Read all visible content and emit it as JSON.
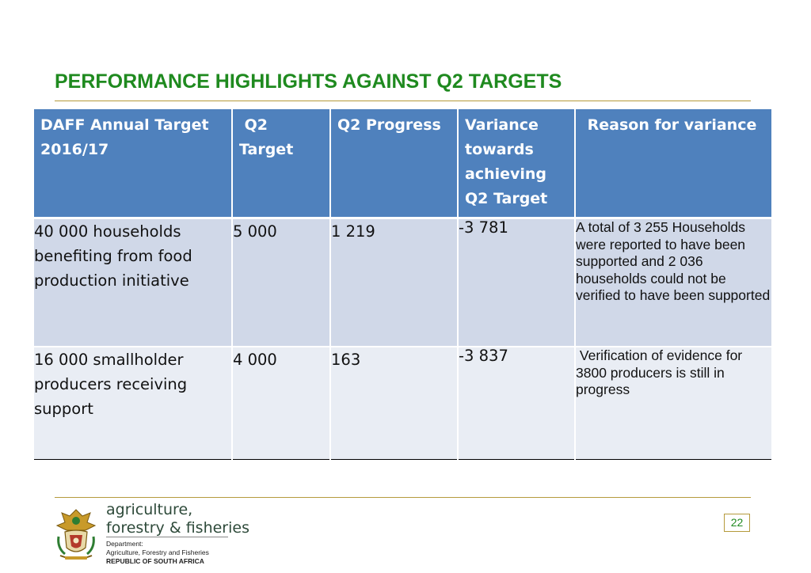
{
  "slide": {
    "title": "PERFORMANCE HIGHLIGHTS AGAINST Q2 TARGETS",
    "page_number": "22"
  },
  "table": {
    "headers": [
      "DAFF Annual Target 2016/17",
      " Q2 Target",
      "Q2 Progress",
      "Variance towards achieving Q2 Target",
      " Reason for variance"
    ],
    "rows": [
      {
        "target": "40 000 households benefiting from food production initiative",
        "q2_target": "5 000",
        "q2_progress": "1 219",
        "variance": "-3 781",
        "reason": "A total of 3 255 Households were reported to have been supported and 2 036 households could not be verified to have been supported"
      },
      {
        "target": "16 000 smallholder producers receiving support",
        "q2_target": "4 000",
        "q2_progress": "163",
        "variance": "-3 837",
        "reason": " Verification of evidence for 3800 producers is still in progress"
      }
    ]
  },
  "footer": {
    "brand_line1": "agriculture,",
    "brand_line2": "forestry & fisheries",
    "dept_line1": "Department:",
    "dept_line2": "Agriculture, Forestry and Fisheries",
    "dept_line3": "REPUBLIC OF SOUTH AFRICA",
    "logo_icon": "coat-of-arms-icon"
  },
  "colors": {
    "title": "#1f8a1f",
    "header_bg": "#4f81bd",
    "row1_bg": "#d0d8e8",
    "row2_bg": "#e9edf4",
    "rule": "#b59a3c"
  }
}
